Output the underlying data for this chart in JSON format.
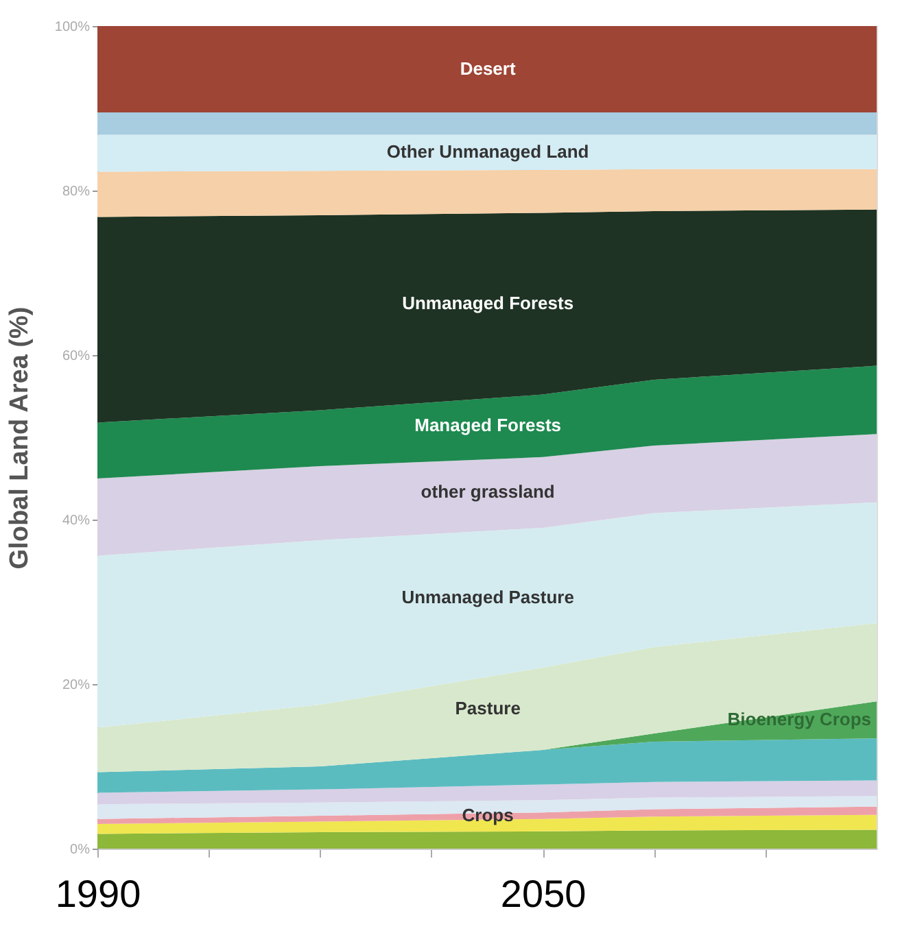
{
  "chart_data": {
    "type": "area",
    "stacked": true,
    "ylabel": "Global Land Area (%)",
    "x": [
      1990,
      2020,
      2050,
      2065,
      2095
    ],
    "xlim": [
      1990,
      2095
    ],
    "xticks": [
      1990,
      {
        "value": 2005,
        "label": null
      },
      {
        "value": 2020,
        "label": null
      },
      {
        "value": 2035,
        "label": null
      },
      2050,
      {
        "value": 2065,
        "label": null
      },
      {
        "value": 2080,
        "label": null
      }
    ],
    "ylim": [
      0,
      100
    ],
    "yticks": [
      {
        "value": 0,
        "label": "0%"
      },
      {
        "value": 20,
        "label": "20%"
      },
      {
        "value": 40,
        "label": "40%"
      },
      {
        "value": 60,
        "label": "60%"
      },
      {
        "value": 80,
        "label": "80%"
      },
      {
        "value": 100,
        "label": "100%"
      }
    ],
    "grid": false,
    "legend": false,
    "series": [
      {
        "color": "#8db83a",
        "values": [
          1.8,
          2.0,
          2.1,
          2.2,
          2.3
        ]
      },
      {
        "color": "#f0e650",
        "values": [
          1.2,
          1.3,
          1.5,
          1.7,
          1.8
        ]
      },
      {
        "name": "Crops",
        "color": "#eea0a8",
        "values": [
          0.6,
          0.7,
          0.8,
          0.9,
          1.0
        ]
      },
      {
        "color": "#dce8f2",
        "values": [
          1.8,
          1.6,
          1.5,
          1.4,
          1.3
        ]
      },
      {
        "color": "#d8d0e6",
        "values": [
          1.4,
          1.6,
          1.9,
          1.9,
          1.9
        ]
      },
      {
        "color": "#5bbcc0",
        "values": [
          2.5,
          2.8,
          4.2,
          4.9,
          5.1
        ]
      },
      {
        "name": "Bioenergy Crops",
        "color": "#4fa85a",
        "values": [
          0,
          0,
          0,
          1.0,
          4.5
        ]
      },
      {
        "name": "Pasture",
        "color": "#d8e8cc",
        "values": [
          5.4,
          7.5,
          10,
          10.5,
          9.5
        ]
      },
      {
        "name": "Unmanaged Pasture",
        "color": "#d4ecf0",
        "values": [
          20.9,
          20,
          17,
          16.3,
          14.7
        ]
      },
      {
        "name": "other grassland",
        "color": "#d8d0e4",
        "values": [
          9.4,
          9,
          8.6,
          8.2,
          8.3
        ]
      },
      {
        "name": "Managed Forests",
        "color": "#1e8a50",
        "values": [
          6.8,
          6.8,
          7.6,
          8,
          8.3
        ]
      },
      {
        "name": "Unmanaged Forests",
        "color": "#1e3323",
        "values": [
          25,
          23.7,
          22.1,
          20.5,
          19
        ]
      },
      {
        "color": "#f5d0a8",
        "values": [
          5.5,
          5.4,
          5.2,
          5.1,
          4.9
        ]
      },
      {
        "name": "Other Unmanaged Land",
        "color": "#d4ecf4",
        "values": [
          4.5,
          4.4,
          4.3,
          4.2,
          4.2
        ]
      },
      {
        "color": "#a8cce0",
        "values": [
          2.7,
          2.7,
          2.7,
          2.7,
          2.7
        ]
      },
      {
        "name": "Desert",
        "color": "#9e4535",
        "values": [
          10.5,
          10.5,
          10.5,
          10.5,
          10.5
        ]
      }
    ]
  }
}
